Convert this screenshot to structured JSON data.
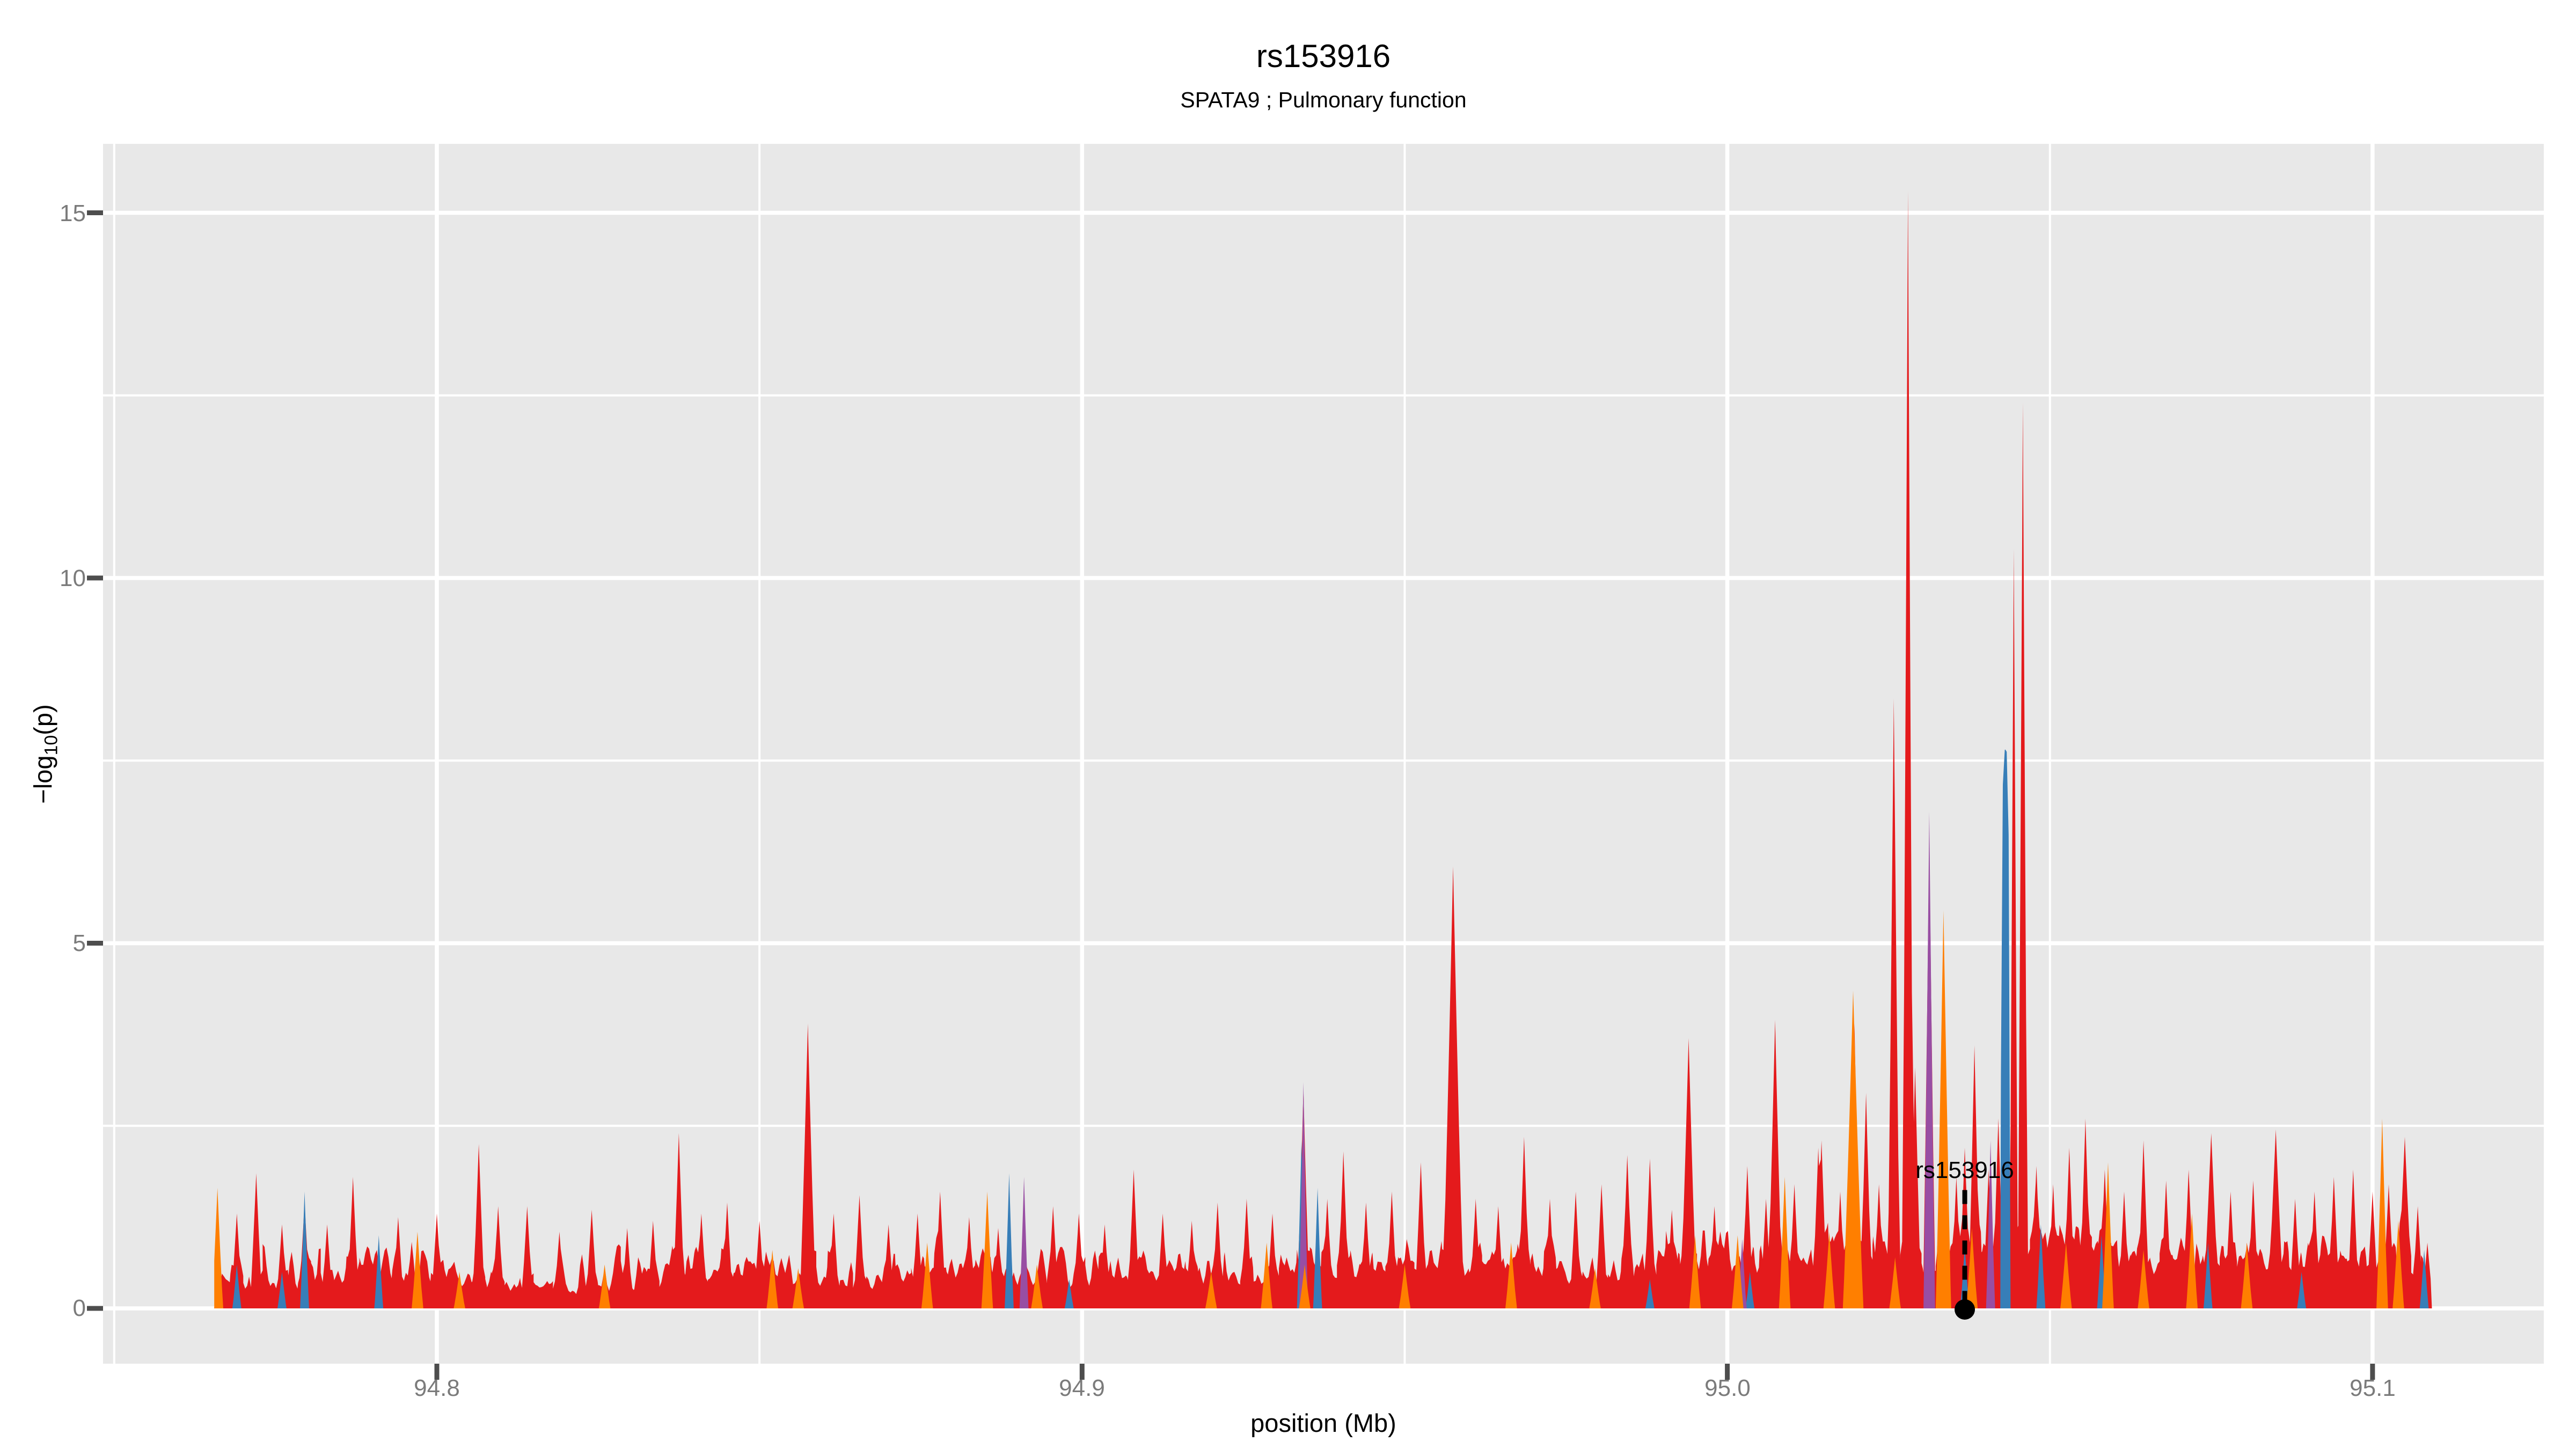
{
  "header": {
    "title": "rs153916",
    "subtitle": "SPATA9 ; Pulmonary function"
  },
  "chart_data": {
    "type": "area",
    "title": "rs153916",
    "subtitle": "SPATA9 ; Pulmonary function",
    "xlabel": "position (Mb)",
    "ylabel": "-log10(p)",
    "ylabel_parts": {
      "prefix": "−log",
      "sub": "10",
      "suffix": "(p)"
    },
    "xlim": [
      94.7483,
      95.1266
    ],
    "ylim": [
      -0.76,
      15.94
    ],
    "x_ticks": [
      94.8,
      94.9,
      95.0,
      95.1
    ],
    "x_tick_labels": [
      "94.8",
      "94.9",
      "95.0",
      "95.1"
    ],
    "y_ticks": [
      0,
      5,
      10,
      15
    ],
    "y_tick_labels": [
      "0",
      "5",
      "10",
      "15"
    ],
    "x_minor": [
      94.75,
      94.85,
      94.95,
      95.05
    ],
    "y_minor": [
      2.5,
      7.5,
      12.5
    ],
    "grid": "on",
    "legend": "none",
    "panel_bg": "#E8E8E8",
    "grid_color": "#FFFFFF",
    "tick_color": "#4D4D4D",
    "tick_label_color": "#7B7B7B",
    "data_range": [
      94.7655,
      95.1092
    ],
    "annotation": {
      "label": "rs153916",
      "x": 95.0368,
      "point_y": 0,
      "line_top": 1.62,
      "line_bottom": 0.12,
      "marker_color": "#000000"
    },
    "series": [
      {
        "name": "red",
        "color": "#E41A1C",
        "peak_width": 0.001,
        "noise": {
          "seed": 42,
          "base": 0.18,
          "amp": 0.72,
          "pow": 2.0,
          "spike_prob": 0.1,
          "spike_amp": 0.55,
          "step": 0.0003,
          "bumps": [
            [
              94.79,
              0.01,
              0.2
            ],
            [
              94.845,
              0.012,
              0.15
            ],
            [
              94.88,
              0.012,
              0.18
            ],
            [
              94.91,
              0.012,
              0.15
            ],
            [
              94.94,
              0.012,
              0.22
            ],
            [
              94.965,
              0.012,
              0.25
            ],
            [
              94.99,
              0.01,
              0.22
            ],
            [
              95.008,
              0.012,
              0.28
            ],
            [
              95.022,
              0.008,
              0.35
            ],
            [
              95.036,
              0.006,
              0.3
            ],
            [
              95.045,
              0.008,
              0.4
            ],
            [
              95.055,
              0.008,
              0.3
            ],
            [
              95.068,
              0.014,
              0.22
            ],
            [
              95.085,
              0.012,
              0.22
            ],
            [
              95.103,
              0.008,
              0.25
            ]
          ]
        },
        "peaks": [
          [
            94.769,
            1.3
          ],
          [
            94.772,
            1.85
          ],
          [
            94.776,
            1.15
          ],
          [
            94.7795,
            1.45
          ],
          [
            94.783,
            1.15
          ],
          [
            94.787,
            1.8
          ],
          [
            94.794,
            1.25
          ],
          [
            94.8,
            1.3
          ],
          [
            94.8065,
            2.25
          ],
          [
            94.8095,
            1.4
          ],
          [
            94.814,
            1.4
          ],
          [
            94.819,
            1.05
          ],
          [
            94.824,
            1.35
          ],
          [
            94.8295,
            1.1
          ],
          [
            94.8335,
            1.2
          ],
          [
            94.8375,
            2.4
          ],
          [
            94.841,
            1.3
          ],
          [
            94.845,
            1.45
          ],
          [
            94.85,
            1.2
          ],
          [
            94.8575,
            3.9,
            0.0013
          ],
          [
            94.8615,
            1.3
          ],
          [
            94.8655,
            1.55
          ],
          [
            94.87,
            1.15
          ],
          [
            94.8745,
            1.3
          ],
          [
            94.878,
            1.6
          ],
          [
            94.8825,
            1.25
          ],
          [
            94.887,
            1.1
          ],
          [
            94.8955,
            1.4
          ],
          [
            94.8995,
            1.3
          ],
          [
            94.9035,
            1.15
          ],
          [
            94.908,
            1.9
          ],
          [
            94.9125,
            1.3
          ],
          [
            94.917,
            1.2
          ],
          [
            94.921,
            1.45
          ],
          [
            94.9255,
            1.5
          ],
          [
            94.9295,
            1.3
          ],
          [
            94.9343,
            3.0
          ],
          [
            94.938,
            1.5
          ],
          [
            94.9405,
            2.15
          ],
          [
            94.944,
            1.45
          ],
          [
            94.948,
            1.6
          ],
          [
            94.9525,
            2.0
          ],
          [
            94.9575,
            6.05,
            0.0017
          ],
          [
            94.961,
            1.5
          ],
          [
            94.9645,
            1.4
          ],
          [
            94.9685,
            2.35
          ],
          [
            94.9725,
            1.5
          ],
          [
            94.9765,
            1.6
          ],
          [
            94.9805,
            1.7
          ],
          [
            94.9845,
            2.1
          ],
          [
            94.988,
            2.05
          ],
          [
            94.9914,
            1.35
          ],
          [
            94.994,
            3.7,
            0.0013
          ],
          [
            94.998,
            1.4
          ],
          [
            95.0031,
            1.95
          ],
          [
            95.006,
            1.5
          ],
          [
            95.0074,
            3.95,
            0.0012
          ],
          [
            95.0104,
            1.7
          ],
          [
            95.0141,
            2.2
          ],
          [
            95.0146,
            2.3
          ],
          [
            95.0175,
            1.6
          ],
          [
            95.0197,
            3.9
          ],
          [
            95.0215,
            2.95
          ],
          [
            95.0235,
            1.7
          ],
          [
            95.0258,
            8.35
          ],
          [
            95.028,
            15.3,
            0.0009
          ],
          [
            95.0291,
            3.3
          ],
          [
            95.0313,
            6.4
          ],
          [
            95.0333,
            3.0
          ],
          [
            95.0355,
            1.8
          ],
          [
            95.0368,
            2.2
          ],
          [
            95.0383,
            3.6
          ],
          [
            95.0405,
            1.9
          ],
          [
            95.042,
            2.6
          ],
          [
            95.0444,
            10.4,
            0.0007
          ],
          [
            95.0458,
            12.4,
            0.0008
          ],
          [
            95.0479,
            1.95
          ],
          [
            95.0505,
            1.7
          ],
          [
            95.053,
            2.2
          ],
          [
            95.0555,
            2.6
          ],
          [
            95.0585,
            1.9
          ],
          [
            95.0615,
            1.6
          ],
          [
            95.0645,
            2.3
          ],
          [
            95.068,
            1.75
          ],
          [
            95.0715,
            1.9
          ],
          [
            95.075,
            2.4,
            0.0013
          ],
          [
            95.078,
            1.6
          ],
          [
            95.0815,
            1.75
          ],
          [
            95.085,
            2.45,
            0.0013
          ],
          [
            95.088,
            1.5
          ],
          [
            95.091,
            1.6
          ],
          [
            95.094,
            1.8
          ],
          [
            95.097,
            1.9
          ],
          [
            95.1,
            1.6
          ],
          [
            95.1025,
            1.7
          ],
          [
            95.105,
            2.35,
            0.0013
          ],
          [
            95.107,
            1.4
          ],
          [
            95.1085,
            0.9
          ]
        ]
      },
      {
        "name": "blue",
        "color": "#377EB8",
        "peak_width": 0.0007,
        "peaks": [
          [
            94.769,
            0.6
          ],
          [
            94.776,
            0.5
          ],
          [
            94.7795,
            1.6
          ],
          [
            94.791,
            1.0
          ],
          [
            94.8887,
            1.85
          ],
          [
            94.898,
            0.4
          ],
          [
            94.934,
            2.3
          ],
          [
            94.9365,
            1.65
          ],
          [
            94.9665,
            0.5
          ],
          [
            94.988,
            0.4
          ],
          [
            95.0035,
            0.5
          ],
          [
            95.0203,
            0.6
          ],
          [
            95.0368,
            0.85
          ],
          [
            95.0431,
            7.65,
            0.0008,
            1
          ],
          [
            95.0486,
            1.15
          ],
          [
            95.058,
            1.0
          ],
          [
            95.0745,
            0.9
          ],
          [
            95.089,
            0.5
          ],
          [
            95.108,
            0.8
          ]
        ]
      },
      {
        "name": "purple",
        "color": "#984EA3",
        "peak_width": 0.0007,
        "peaks": [
          [
            94.891,
            1.8
          ],
          [
            94.9343,
            3.1
          ],
          [
            95.0023,
            0.95
          ],
          [
            95.0313,
            6.8,
            0.0009
          ],
          [
            95.0408,
            2.3
          ]
        ]
      },
      {
        "name": "orange",
        "color": "#FF7F00",
        "peak_width": 0.0009,
        "peaks": [
          [
            94.766,
            1.65
          ],
          [
            94.797,
            1.05
          ],
          [
            94.8035,
            0.5
          ],
          [
            94.826,
            0.6
          ],
          [
            94.852,
            0.8
          ],
          [
            94.856,
            0.55
          ],
          [
            94.876,
            0.9
          ],
          [
            94.8853,
            1.6
          ],
          [
            94.893,
            0.6
          ],
          [
            94.92,
            0.5
          ],
          [
            94.9286,
            0.9
          ],
          [
            94.9345,
            0.6
          ],
          [
            94.95,
            0.6
          ],
          [
            94.9665,
            0.9
          ],
          [
            94.9795,
            0.55
          ],
          [
            94.995,
            1.0
          ],
          [
            95.0016,
            1.0
          ],
          [
            95.0089,
            1.8
          ],
          [
            95.0158,
            1.05
          ],
          [
            95.0195,
            4.35,
            0.0016
          ],
          [
            95.026,
            0.7
          ],
          [
            95.0335,
            5.45,
            0.0012
          ],
          [
            95.0379,
            1.1
          ],
          [
            95.0525,
            0.9
          ],
          [
            95.059,
            2.0
          ],
          [
            95.0645,
            0.8
          ],
          [
            95.072,
            1.3
          ],
          [
            95.0805,
            0.9
          ],
          [
            95.1015,
            2.6
          ],
          [
            95.104,
            1.2
          ]
        ]
      }
    ]
  }
}
